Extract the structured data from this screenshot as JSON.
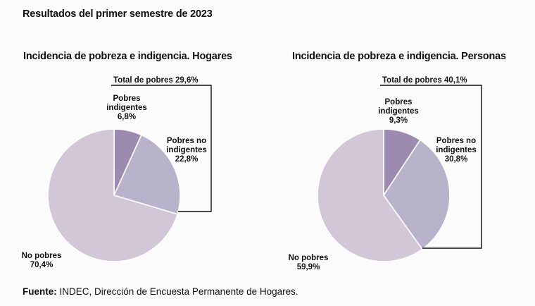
{
  "header": {
    "title": "Resultados del primer semestre de 2023"
  },
  "footer": {
    "source_label": "Fuente:",
    "source_text": "INDEC, Dirección de Encuesta Permanente de Hogares."
  },
  "colors": {
    "indigentes": "#9d8ab0",
    "no_indigentes": "#b8b3cb",
    "no_pobres": "#d2c7d6",
    "line": "#111111"
  },
  "chart_data": [
    {
      "type": "pie",
      "title": "Incidencia de pobreza e indigencia. Hogares",
      "total_label": "Total de pobres 29,6%",
      "slices": [
        {
          "label_lines": [
            "Pobres",
            "indigentes",
            "6,8%"
          ],
          "value": 6.8
        },
        {
          "label_lines": [
            "Pobres no",
            "indigentes",
            "22,8%"
          ],
          "value": 22.8
        },
        {
          "label_lines": [
            "No pobres",
            "70,4%"
          ],
          "value": 70.4
        }
      ]
    },
    {
      "type": "pie",
      "title": "Incidencia de pobreza e indigencia. Personas",
      "total_label": "Total de pobres 40,1%",
      "slices": [
        {
          "label_lines": [
            "Pobres",
            "indigentes",
            "9,3%"
          ],
          "value": 9.3
        },
        {
          "label_lines": [
            "Pobres no",
            "indigentes",
            "30,8%"
          ],
          "value": 30.8
        },
        {
          "label_lines": [
            "No pobres",
            "59,9%"
          ],
          "value": 59.9
        }
      ]
    }
  ]
}
